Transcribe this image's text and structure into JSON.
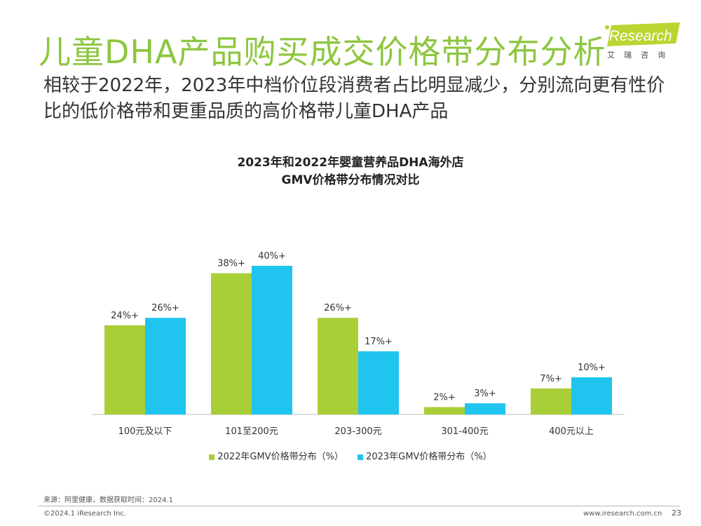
{
  "page": {
    "title": "儿童DHA产品购买成交价格带分布分析",
    "subtitle": "相较于2022年，2023年中档价位段消费者占比明显减少，分别流向更有性价比的低价格带和更重品质的高价格带儿童DHA产品",
    "logo_text": "iResearch",
    "logo_sub": "艾瑞咨询",
    "source": "来源：阿里健康，数据获取时间：2024.1",
    "copyright": "©2024.1 iResearch Inc.",
    "website": "www.iresearch.com.cn",
    "page_number": "23"
  },
  "colors": {
    "title_green": "#8dc63f",
    "series_2022": "#a9cf38",
    "series_2023": "#1fc5ee"
  },
  "chart_data": {
    "type": "bar",
    "title_line1": "2023年和2022年婴童营养品DHA海外店",
    "title_line2": "GMV价格带分布情况对比",
    "categories": [
      "100元及以下",
      "101至200元",
      "203-300元",
      "301-400元",
      "400元以上"
    ],
    "series": [
      {
        "name": "2022年GMV价格带分布（%）",
        "values": [
          24,
          38,
          26,
          2,
          7
        ],
        "labels": [
          "24%+",
          "38%+",
          "26%+",
          "2%+",
          "7%+"
        ]
      },
      {
        "name": "2023年GMV价格带分布（%）",
        "values": [
          26,
          40,
          17,
          3,
          10
        ],
        "labels": [
          "26%+",
          "40%+",
          "17%+",
          "3%+",
          "10%+"
        ]
      }
    ],
    "ylim": [
      0,
      45
    ],
    "grid": false,
    "legend": "bottom"
  }
}
